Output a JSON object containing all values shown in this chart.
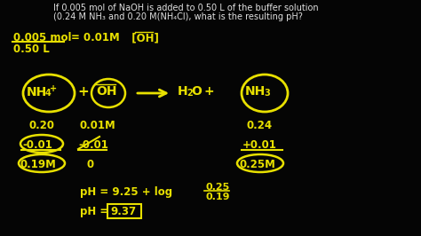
{
  "bg_color": "#050505",
  "text_color": "#e8e000",
  "white_text_color": "#e0e0e0",
  "title1": "If 0.005 mol of NaOH is added to 0.50 L of the buffer solution",
  "title2": "(0.24 M NH₃ and 0.20 M(NH₄Cl), what is the resulting pH?",
  "frac_top": "0.005 mol",
  "frac_bottom": "0.50 L",
  "frac_result": "= 0.01M  [OH]",
  "figsize": [
    4.74,
    2.66
  ],
  "dpi": 100
}
